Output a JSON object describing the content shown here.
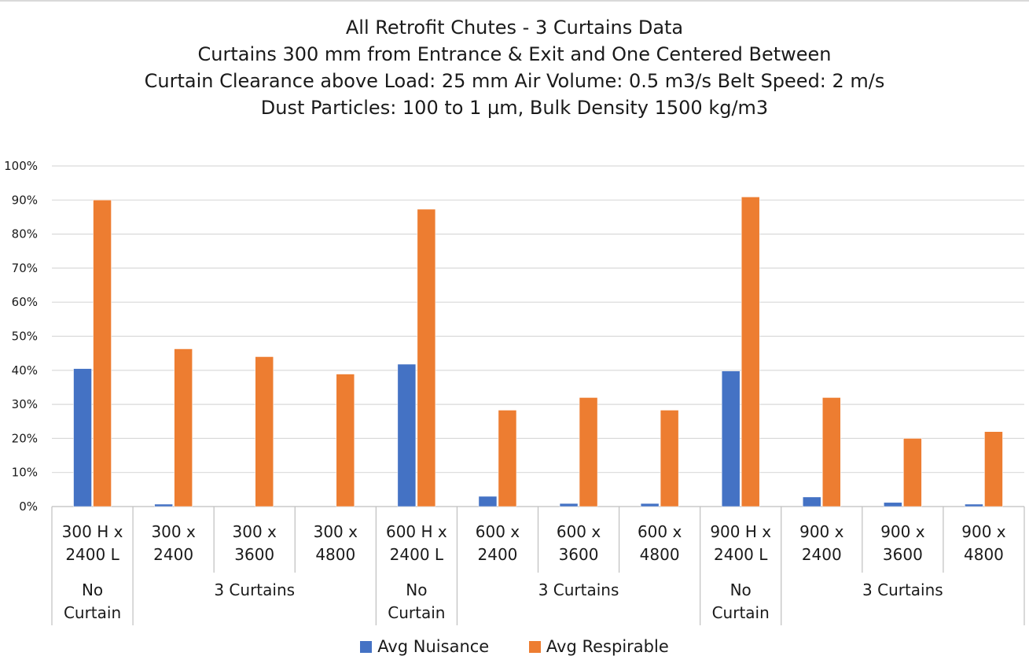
{
  "title_lines": [
    "All Retrofit Chutes - 3 Curtains Data",
    "Curtains 300 mm from Entrance & Exit and One Centered Between",
    "Curtain Clearance above Load: 25 mm  Air Volume:  0.5 m3/s  Belt Speed:  2 m/s",
    "Dust Particles: 100 to 1 µm, Bulk Density 1500 kg/m3"
  ],
  "chart_data": {
    "type": "bar",
    "title": "All Retrofit Chutes - 3 Curtains Data",
    "xlabel": "",
    "ylabel": "",
    "ylim": [
      0,
      100
    ],
    "y_ticks": [
      "0%",
      "10%",
      "20%",
      "30%",
      "40%",
      "50%",
      "60%",
      "70%",
      "80%",
      "90%",
      "100%"
    ],
    "grid": true,
    "legend_position": "bottom",
    "categories": [
      [
        "300 H x",
        "2400 L"
      ],
      [
        "300 x",
        "2400"
      ],
      [
        "300 x",
        "3600"
      ],
      [
        "300 x",
        "4800"
      ],
      [
        "600 H x",
        "2400 L"
      ],
      [
        "600 x",
        "2400"
      ],
      [
        "600 x",
        "3600"
      ],
      [
        "600 x",
        "4800"
      ],
      [
        "900 H x",
        "2400 L"
      ],
      [
        "900 x",
        "2400"
      ],
      [
        "900 x",
        "3600"
      ],
      [
        "900 x",
        "4800"
      ]
    ],
    "groups": [
      {
        "label": [
          "No",
          "Curtain"
        ],
        "span": 1
      },
      {
        "label": [
          "3 Curtains"
        ],
        "span": 3
      },
      {
        "label": [
          "No",
          "Curtain"
        ],
        "span": 1
      },
      {
        "label": [
          "3 Curtains"
        ],
        "span": 3
      },
      {
        "label": [
          "No",
          "Curtain"
        ],
        "span": 1
      },
      {
        "label": [
          "3 Curtains"
        ],
        "span": 3
      }
    ],
    "series": [
      {
        "name": "Avg Nuisance",
        "color": "#4472c4",
        "values": [
          40.5,
          0.7,
          0,
          0,
          41.8,
          3.0,
          0.9,
          0.9,
          39.8,
          2.8,
          1.2,
          0.7
        ]
      },
      {
        "name": "Avg Respirable",
        "color": "#ed7d31",
        "values": [
          90.0,
          46.3,
          44.0,
          38.9,
          87.3,
          28.3,
          32.0,
          28.3,
          90.9,
          32.0,
          20.0,
          22.0
        ]
      }
    ]
  }
}
